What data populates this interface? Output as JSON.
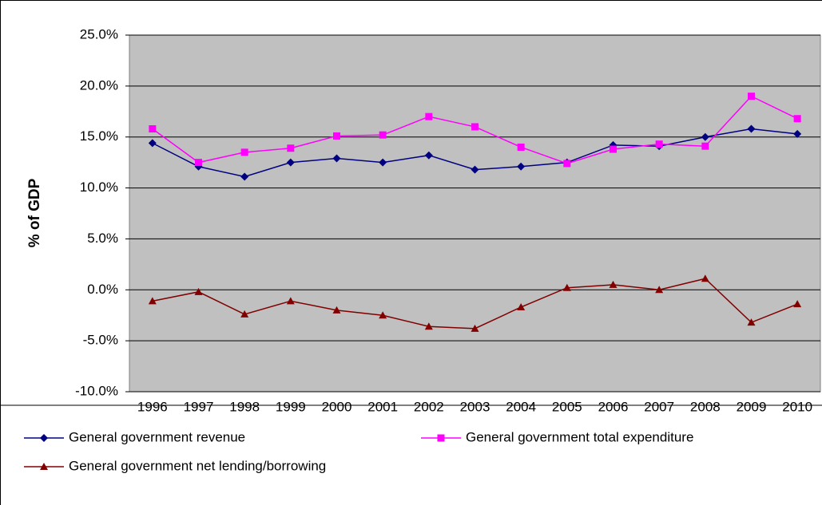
{
  "chart_data": {
    "type": "line",
    "y_label": "% of GDP",
    "categories": [
      "1996",
      "1997",
      "1998",
      "1999",
      "2000",
      "2001",
      "2002",
      "2003",
      "2004",
      "2005",
      "2006",
      "2007",
      "2008",
      "2009",
      "2010"
    ],
    "series": [
      {
        "name": "General government revenue",
        "color": "#000080",
        "marker": "diamond",
        "values": [
          14.4,
          12.1,
          11.1,
          12.5,
          12.9,
          12.5,
          13.2,
          11.8,
          12.1,
          12.5,
          14.2,
          14.1,
          15.0,
          15.8,
          15.3
        ]
      },
      {
        "name": "General government total expenditure",
        "color": "#ff00ff",
        "marker": "square",
        "values": [
          15.8,
          12.5,
          13.5,
          13.9,
          15.1,
          15.2,
          17.0,
          16.0,
          14.0,
          12.4,
          13.8,
          14.3,
          14.1,
          19.0,
          16.8
        ]
      },
      {
        "name": "General government net lending/borrowing",
        "color": "#800000",
        "marker": "triangle",
        "values": [
          -1.1,
          -0.2,
          -2.4,
          -1.1,
          -2.0,
          -2.5,
          -3.6,
          -3.8,
          -1.7,
          0.2,
          0.5,
          0.0,
          1.1,
          -3.2,
          -1.4
        ]
      }
    ],
    "ylim": [
      -10,
      25
    ],
    "yticks": [
      {
        "value": -10,
        "label": "-10.0%"
      },
      {
        "value": -5,
        "label": "-5.0%"
      },
      {
        "value": 0,
        "label": "0.0%"
      },
      {
        "value": 5,
        "label": "5.0%"
      },
      {
        "value": 10,
        "label": "10.0%"
      },
      {
        "value": 15,
        "label": "15.0%"
      },
      {
        "value": 20,
        "label": "20.0%"
      },
      {
        "value": 25,
        "label": "25.0%"
      }
    ],
    "grid": true,
    "legend": "bottom",
    "plot_background": "#c0c0c0"
  }
}
